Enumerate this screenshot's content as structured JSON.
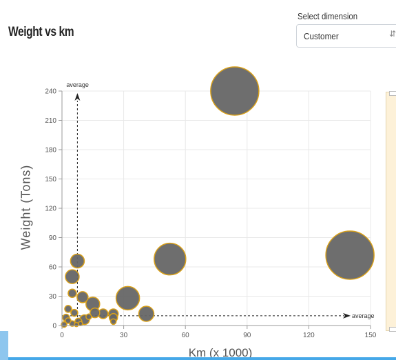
{
  "header": {
    "title": "Weight vs km"
  },
  "dimension": {
    "label": "Select dimension",
    "selected": "Customer"
  },
  "colors": {
    "bubble_fill": "#666666",
    "bubble_stroke": "#d9a019",
    "grid": "#e8e8e8",
    "accent_bar": "#46a8e8"
  },
  "chart_data": {
    "type": "scatter",
    "title": "Weight vs km",
    "xlabel": "Km (x 1000)",
    "ylabel": "Weight (Tons)",
    "xlim": [
      0,
      150
    ],
    "ylim": [
      0,
      240
    ],
    "xticks": [
      0,
      30,
      60,
      90,
      120,
      150
    ],
    "yticks": [
      0,
      30,
      60,
      90,
      120,
      150,
      180,
      210,
      240
    ],
    "grid": true,
    "average": {
      "x": 7.5,
      "y": 10,
      "label": "average"
    },
    "points": [
      {
        "x": 84,
        "y": 240,
        "r": 35
      },
      {
        "x": 140,
        "y": 72,
        "r": 35
      },
      {
        "x": 52.5,
        "y": 68,
        "r": 23
      },
      {
        "x": 32,
        "y": 28,
        "r": 17
      },
      {
        "x": 7.5,
        "y": 66,
        "r": 10
      },
      {
        "x": 5,
        "y": 50,
        "r": 10
      },
      {
        "x": 10,
        "y": 29,
        "r": 8
      },
      {
        "x": 15,
        "y": 22,
        "r": 10
      },
      {
        "x": 41,
        "y": 12,
        "r": 11
      },
      {
        "x": 5,
        "y": 33,
        "r": 6
      },
      {
        "x": 25,
        "y": 12,
        "r": 7
      },
      {
        "x": 20,
        "y": 12,
        "r": 7
      },
      {
        "x": 16,
        "y": 13,
        "r": 7
      },
      {
        "x": 11,
        "y": 6,
        "r": 7
      },
      {
        "x": 3,
        "y": 17,
        "r": 5
      },
      {
        "x": 6,
        "y": 13,
        "r": 5
      },
      {
        "x": 25,
        "y": 8,
        "r": 6
      },
      {
        "x": 2,
        "y": 8,
        "r": 5
      },
      {
        "x": 8,
        "y": 4,
        "r": 5
      },
      {
        "x": 5,
        "y": 2,
        "r": 4
      },
      {
        "x": 1,
        "y": 1,
        "r": 4
      },
      {
        "x": 3,
        "y": 5,
        "r": 4
      },
      {
        "x": 25,
        "y": 4,
        "r": 4
      },
      {
        "x": 13,
        "y": 9,
        "r": 4
      },
      {
        "x": 7,
        "y": 1,
        "r": 3
      },
      {
        "x": 9,
        "y": 2,
        "r": 3
      }
    ]
  }
}
